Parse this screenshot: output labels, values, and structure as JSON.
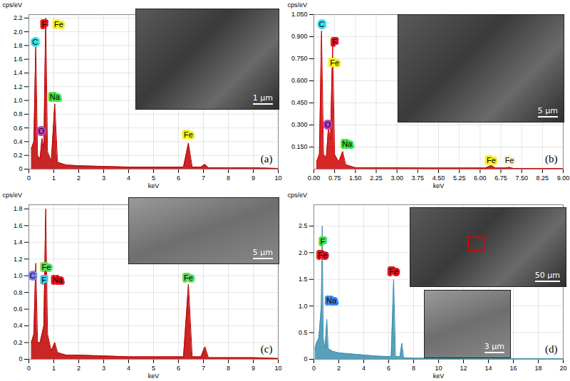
{
  "chart_data": [
    {
      "type": "area",
      "panel_label": "(a)",
      "x_label": "keV",
      "y_label": "cps/eV",
      "color": "#c00000",
      "grid": true,
      "x": [
        0.1,
        0.2,
        0.277,
        0.35,
        0.45,
        0.525,
        0.6,
        0.677,
        0.75,
        0.9,
        1.04,
        1.15,
        1.5,
        2,
        3,
        4,
        5,
        6.2,
        6.4,
        6.55,
        6.9,
        7.06,
        7.2,
        8,
        9,
        10
      ],
      "values": [
        0.3,
        0.4,
        1.8,
        0.2,
        0.15,
        0.45,
        0.3,
        2.2,
        0.25,
        0.12,
        0.95,
        0.1,
        0.06,
        0.05,
        0.04,
        0.03,
        0.03,
        0.03,
        0.38,
        0.03,
        0.03,
        0.07,
        0.02,
        0.02,
        0.02,
        0.01
      ],
      "xlim": [
        0,
        10
      ],
      "xticks": [
        0,
        1,
        2,
        3,
        4,
        5,
        6,
        7,
        8,
        9,
        10
      ],
      "ylim": [
        0,
        2.25
      ],
      "yticks": [
        0,
        0.2,
        0.4,
        0.6,
        0.8,
        {
          "value": 1,
          "label": "1.0"
        },
        1.2,
        1.4,
        1.6,
        1.8,
        {
          "value": 2,
          "label": "2.0"
        },
        2.2
      ],
      "annotations": [
        {
          "text": "C",
          "x": 0.25,
          "y": 1.85,
          "color": "#40e0e8"
        },
        {
          "text": "F",
          "x": 0.62,
          "y": 2.1,
          "color": "#e8141e"
        },
        {
          "text": "Fe",
          "x": 1.2,
          "y": 2.1,
          "color": "#f4f020"
        },
        {
          "text": "Na",
          "x": 1.04,
          "y": 1.05,
          "color": "#40e040"
        },
        {
          "text": "O",
          "x": 0.5,
          "y": 0.55,
          "color": "#c040c0"
        },
        {
          "text": "Fe",
          "x": 6.4,
          "y": 0.5,
          "color": "#f4f020"
        }
      ],
      "inset": {
        "scale_bars": [
          "1 μm"
        ]
      }
    },
    {
      "type": "area",
      "panel_label": "(b)",
      "x_label": "keV",
      "y_label": "cps/eV",
      "color": "#d00000",
      "grid": true,
      "x": [
        0.1,
        0.2,
        0.277,
        0.35,
        0.45,
        0.525,
        0.6,
        0.677,
        0.75,
        0.9,
        1.04,
        1.15,
        1.5,
        2,
        3,
        4,
        5,
        6.2,
        6.4,
        6.55,
        6.9,
        7.06,
        7.2,
        8,
        9
      ],
      "values": [
        0.05,
        0.1,
        0.94,
        0.1,
        0.08,
        0.28,
        0.2,
        0.83,
        0.1,
        0.05,
        0.12,
        0.03,
        0.01,
        0.01,
        0.01,
        0.008,
        0.008,
        0.008,
        0.025,
        0.008,
        0.008,
        0.012,
        0.005,
        0.005,
        0.005
      ],
      "xlim": [
        0,
        9
      ],
      "xticks": [
        {
          "value": 0,
          "label": "0.00"
        },
        {
          "value": 0.75,
          "label": "0.75"
        },
        {
          "value": 1.5,
          "label": "1.50"
        },
        {
          "value": 2.25,
          "label": "2.25"
        },
        {
          "value": 3,
          "label": "3.00"
        },
        {
          "value": 3.75,
          "label": "3.75"
        },
        {
          "value": 4.5,
          "label": "4.50"
        },
        {
          "value": 5.25,
          "label": "5.25"
        },
        {
          "value": 6,
          "label": "6.00"
        },
        {
          "value": 6.75,
          "label": "6.75"
        },
        {
          "value": 7.5,
          "label": "7.50"
        },
        {
          "value": 8.25,
          "label": "8.25"
        },
        {
          "value": 9,
          "label": "9.00"
        }
      ],
      "ylim": [
        0,
        1.05
      ],
      "yticks": [
        {
          "value": 0.15,
          "label": "0.150"
        },
        {
          "value": 0.3,
          "label": "0.300"
        },
        {
          "value": 0.45,
          "label": "0.450"
        },
        {
          "value": 0.6,
          "label": "0.600"
        },
        {
          "value": 0.75,
          "label": "0.750"
        },
        {
          "value": 0.9,
          "label": "0.900"
        },
        {
          "value": 1.05,
          "label": "1.050"
        }
      ],
      "annotations": [
        {
          "text": "C",
          "x": 0.28,
          "y": 0.98,
          "color": "#40e0e8"
        },
        {
          "text": "F",
          "x": 0.75,
          "y": 0.86,
          "color": "#e8141e"
        },
        {
          "text": "Fe",
          "x": 0.75,
          "y": 0.72,
          "color": "#f4f020"
        },
        {
          "text": "O",
          "x": 0.5,
          "y": 0.3,
          "color": "#c040c0"
        },
        {
          "text": "Na",
          "x": 1.2,
          "y": 0.17,
          "color": "#40e040"
        },
        {
          "text": "Fe",
          "x": 6.4,
          "y": 0.06,
          "color": "#f4f020"
        },
        {
          "text": "Fe",
          "x": 7.06,
          "y": 0.06,
          "color": "#fff2d0"
        }
      ],
      "inset": {
        "scale_bars": [
          "5 μm"
        ]
      }
    },
    {
      "type": "area",
      "panel_label": "(c)",
      "x_label": "keV",
      "y_label": "cps/eV",
      "color": "#c00000",
      "grid": true,
      "x": [
        0.1,
        0.2,
        0.277,
        0.35,
        0.45,
        0.525,
        0.6,
        0.677,
        0.75,
        0.9,
        1.04,
        1.15,
        1.5,
        2,
        3,
        4,
        5,
        6.2,
        6.4,
        6.55,
        6.9,
        7.06,
        7.2,
        8,
        9,
        10
      ],
      "values": [
        0.2,
        0.3,
        1.15,
        0.2,
        0.2,
        0.3,
        0.4,
        1.8,
        0.3,
        0.1,
        0.2,
        0.08,
        0.05,
        0.05,
        0.04,
        0.03,
        0.03,
        0.03,
        0.9,
        0.03,
        0.03,
        0.15,
        0.02,
        0.02,
        0.02,
        0.01
      ],
      "xlim": [
        0,
        10
      ],
      "xticks": [
        0,
        1,
        2,
        3,
        4,
        5,
        6,
        7,
        8,
        9,
        10
      ],
      "ylim": [
        0,
        1.85
      ],
      "yticks": [
        0,
        0.2,
        0.4,
        0.6,
        0.8,
        {
          "value": 1,
          "label": "1.0"
        },
        1.2,
        1.4,
        1.6,
        1.8
      ],
      "annotations": [
        {
          "text": "C",
          "x": 0.15,
          "y": 1.0,
          "color": "#8080f0"
        },
        {
          "text": "Fe",
          "x": 0.7,
          "y": 1.1,
          "color": "#60e060"
        },
        {
          "text": "F",
          "x": 0.6,
          "y": 0.95,
          "color": "#40c8f0"
        },
        {
          "text": "Na",
          "x": 1.15,
          "y": 0.95,
          "color": "#e8141e"
        },
        {
          "text": "Fe",
          "x": 6.4,
          "y": 0.97,
          "color": "#60e060"
        }
      ],
      "inset": {
        "scale_bars": [
          "5 μm"
        ]
      }
    },
    {
      "type": "area",
      "panel_label": "(d)",
      "x_label": "keV",
      "y_label": "cps/eV",
      "color": "#3a8fb0",
      "grid": true,
      "x": [
        0.1,
        0.2,
        0.4,
        0.6,
        0.677,
        0.705,
        0.75,
        0.9,
        1.04,
        1.15,
        1.5,
        2,
        3,
        4,
        5,
        6.2,
        6.4,
        6.55,
        6.9,
        7.06,
        7.2,
        8,
        10,
        12,
        14,
        16,
        18,
        20
      ],
      "values": [
        0.2,
        0.3,
        0.4,
        1.0,
        2.5,
        1.7,
        0.4,
        0.2,
        0.75,
        0.2,
        0.15,
        0.12,
        0.1,
        0.08,
        0.06,
        0.05,
        1.5,
        0.05,
        0.05,
        0.3,
        0.03,
        0.02,
        0.02,
        0.01,
        0.01,
        0.01,
        0.01,
        0.01
      ],
      "xlim": [
        0,
        20
      ],
      "xticks": [
        0,
        2,
        4,
        6,
        8,
        10,
        12,
        14,
        16,
        18,
        20
      ],
      "ylim": [
        0,
        2.9
      ],
      "yticks": [
        0,
        0.5,
        {
          "value": 1,
          "label": "1.0"
        },
        1.5,
        {
          "value": 2,
          "label": "2.0"
        },
        2.5
      ],
      "annotations": [
        {
          "text": "F",
          "x": 0.7,
          "y": 2.2,
          "color": "#40e040"
        },
        {
          "text": "Fe",
          "x": 0.7,
          "y": 1.95,
          "color": "#e8141e"
        },
        {
          "text": "Na",
          "x": 1.4,
          "y": 1.1,
          "color": "#4080f0"
        },
        {
          "text": "Fe",
          "x": 6.4,
          "y": 1.65,
          "color": "#e8141e"
        }
      ],
      "inset": {
        "scale_bars": [
          "50 μm",
          "3 μm"
        ]
      }
    }
  ]
}
